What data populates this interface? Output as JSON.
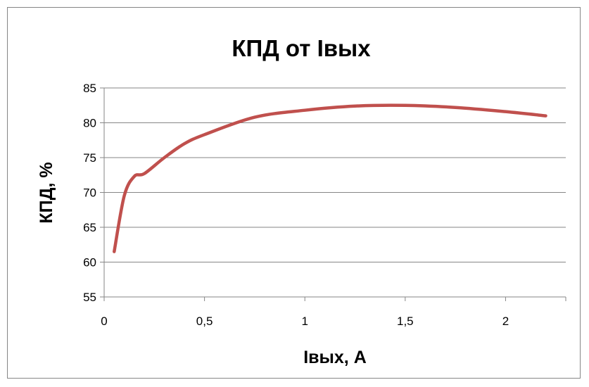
{
  "chart_data": {
    "type": "line",
    "title": "КПД от Iвых",
    "xlabel": "Iвых, А",
    "ylabel": "КПД, %",
    "xlim": [
      0,
      2.3
    ],
    "ylim": [
      55,
      85
    ],
    "x_ticks": [
      0,
      0.5,
      1,
      1.5,
      2
    ],
    "x_tick_labels": [
      "0",
      "0,5",
      "1",
      "1,5",
      "2"
    ],
    "y_ticks": [
      55,
      60,
      65,
      70,
      75,
      80,
      85
    ],
    "y_tick_labels": [
      "55",
      "60",
      "65",
      "70",
      "75",
      "80",
      "85"
    ],
    "grid": "horizontal",
    "legend": "none",
    "series": [
      {
        "color": "#C0504D",
        "x": [
          0.05,
          0.1,
          0.15,
          0.2,
          0.3,
          0.4,
          0.5,
          0.75,
          1.0,
          1.25,
          1.5,
          1.75,
          2.0,
          2.2
        ],
        "y": [
          61.5,
          69.5,
          72.3,
          72.7,
          75.0,
          77.0,
          78.3,
          80.8,
          81.8,
          82.4,
          82.5,
          82.2,
          81.6,
          81.0
        ]
      }
    ]
  }
}
